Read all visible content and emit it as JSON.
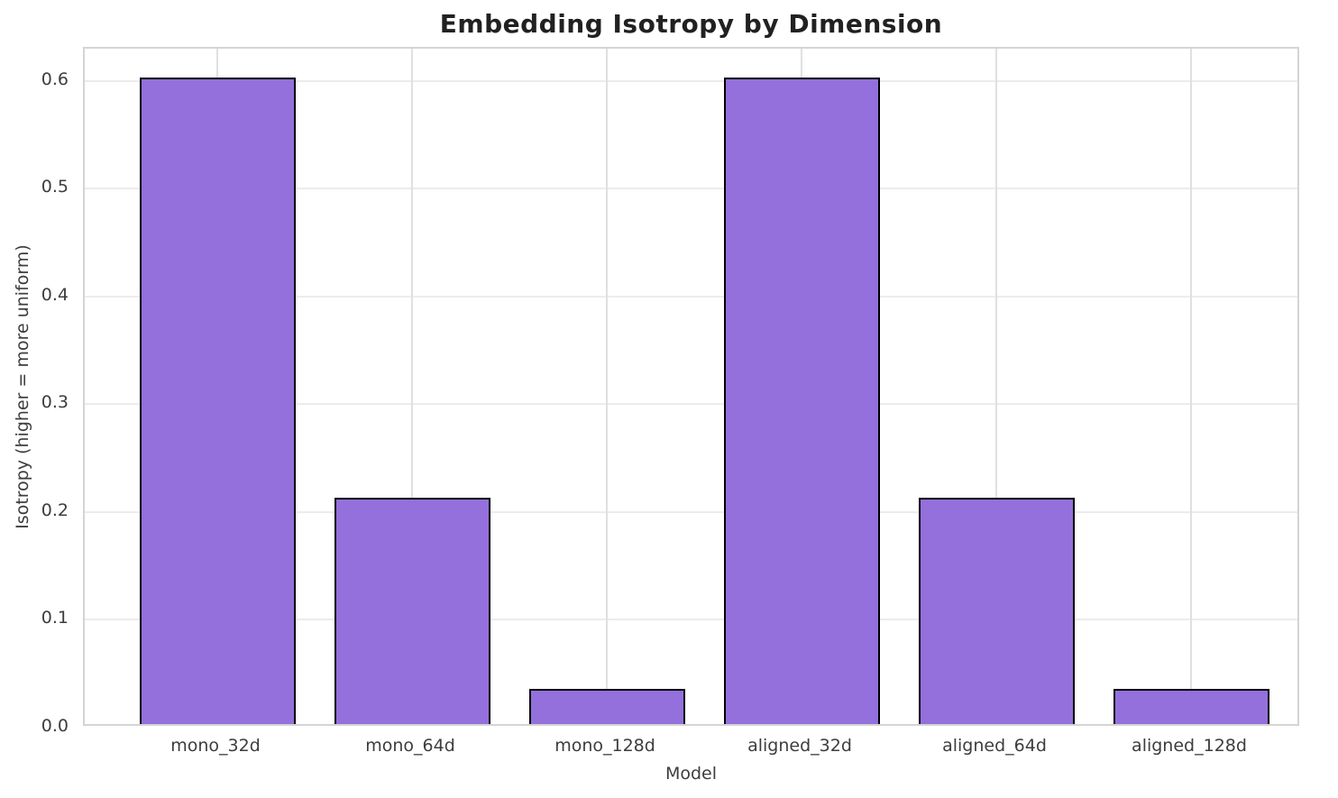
{
  "chart_data": {
    "type": "bar",
    "title": "Embedding Isotropy by Dimension",
    "xlabel": "Model",
    "ylabel": "Isotropy (higher = more uniform)",
    "categories": [
      "mono_32d",
      "mono_64d",
      "mono_128d",
      "aligned_32d",
      "aligned_64d",
      "aligned_128d"
    ],
    "values": [
      0.6,
      0.21,
      0.033,
      0.6,
      0.21,
      0.033
    ],
    "ytick_labels": [
      "0.0",
      "0.1",
      "0.2",
      "0.3",
      "0.4",
      "0.5",
      "0.6"
    ],
    "yticks": [
      0.0,
      0.1,
      0.2,
      0.3,
      0.4,
      0.5,
      0.6
    ],
    "ylim": [
      0,
      0.63
    ],
    "grid": true,
    "legend": "none",
    "bar_color": "#9370DB",
    "bar_edge_color": "#000000",
    "grid_color": "#ececec",
    "spine_color": "#d4d4d4",
    "title_color": "#212121",
    "tick_color": "#3d3d3d"
  }
}
